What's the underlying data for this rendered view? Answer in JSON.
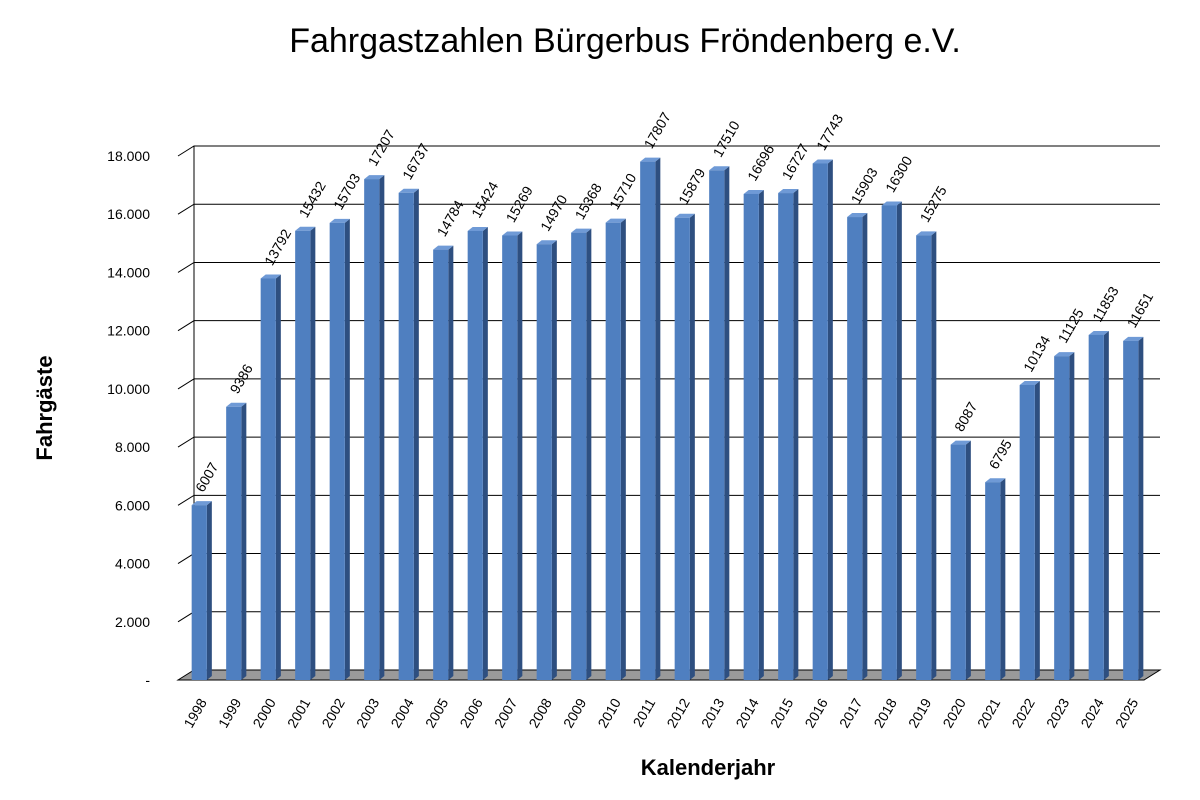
{
  "chart_data": {
    "type": "bar",
    "title": "Fahrgastzahlen Bürgerbus Fröndenberg e.V.",
    "xlabel": "Kalenderjahr",
    "ylabel": "Fahrgäste",
    "categories": [
      "1998",
      "1999",
      "2000",
      "2001",
      "2002",
      "2003",
      "2004",
      "2005",
      "2006",
      "2007",
      "2008",
      "2009",
      "2010",
      "2011",
      "2012",
      "2013",
      "2014",
      "2015",
      "2016",
      "2017",
      "2018",
      "2019",
      "2020",
      "2021",
      "2022",
      "2023",
      "2024",
      "2025"
    ],
    "values": [
      6007,
      9386,
      13792,
      15432,
      15703,
      17207,
      16737,
      14784,
      15424,
      15269,
      14970,
      15368,
      15710,
      17807,
      15879,
      17510,
      16696,
      16727,
      17743,
      15903,
      16300,
      15275,
      8087,
      6795,
      10134,
      11125,
      11853,
      11651
    ],
    "data_labels": [
      "6007",
      "9386",
      "13792",
      "15432",
      "15703",
      "17207",
      "16737",
      "14784",
      "15424",
      "15269",
      "14970",
      "15368",
      "15710",
      "17807",
      "15879",
      "17510",
      "16696",
      "16727",
      "17743",
      "15903",
      "16300",
      "15275",
      "8087",
      "6795",
      "10134",
      "11125",
      "11853",
      "11651"
    ],
    "ylim": [
      0,
      18000
    ],
    "yticks": [
      0,
      2000,
      4000,
      6000,
      8000,
      10000,
      12000,
      14000,
      16000,
      18000
    ],
    "ytick_labels": [
      "-",
      "2.000",
      "4.000",
      "6.000",
      "8.000",
      "10.000",
      "12.000",
      "14.000",
      "16.000",
      "18.000"
    ],
    "grid": true,
    "style": "3d-column",
    "colors": {
      "bar_front": "#4f7fc0",
      "bar_side": "#2e4f80",
      "bar_top": "#6f9ad6",
      "floor": "#9a9a9a",
      "grid": "#000000"
    }
  }
}
